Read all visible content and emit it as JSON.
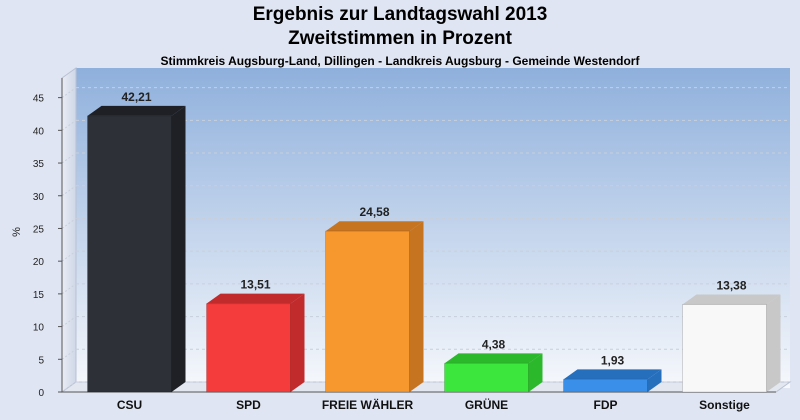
{
  "header": {
    "title_line1": "Ergebnis zur Landtagswahl 2013",
    "title_line2": "Zweitstimmen in Prozent",
    "subtitle": "Stimmkreis Augsburg-Land, Dillingen - Landkreis Augsburg - Gemeinde Westendorf"
  },
  "chart_data": {
    "type": "bar",
    "title": "Ergebnis zur Landtagswahl 2013 Zweitstimmen in Prozent",
    "subtitle": "Stimmkreis Augsburg-Land, Dillingen - Landkreis Augsburg - Gemeinde Westendorf",
    "xlabel": "",
    "ylabel": "%",
    "ylim": [
      0,
      48
    ],
    "yticks": [
      0,
      5,
      10,
      15,
      20,
      25,
      30,
      35,
      40,
      45
    ],
    "grid": true,
    "categories": [
      "CSU",
      "SPD",
      "FREIE WÄHLER",
      "GRÜNE",
      "FDP",
      "Sonstige"
    ],
    "values": [
      42.21,
      13.51,
      24.58,
      4.38,
      1.93,
      13.38
    ],
    "value_labels": [
      "42,21",
      "13,51",
      "24,58",
      "4,38",
      "1,93",
      "13,38"
    ],
    "colors": [
      "#2e3038",
      "#f43c3c",
      "#f7982f",
      "#3de63d",
      "#3a8fe8",
      "#f8f8f8"
    ],
    "side_colors": [
      "#1e2026",
      "#c22b2b",
      "#c77420",
      "#2bb82b",
      "#266fbd",
      "#c8c8c8"
    ]
  }
}
